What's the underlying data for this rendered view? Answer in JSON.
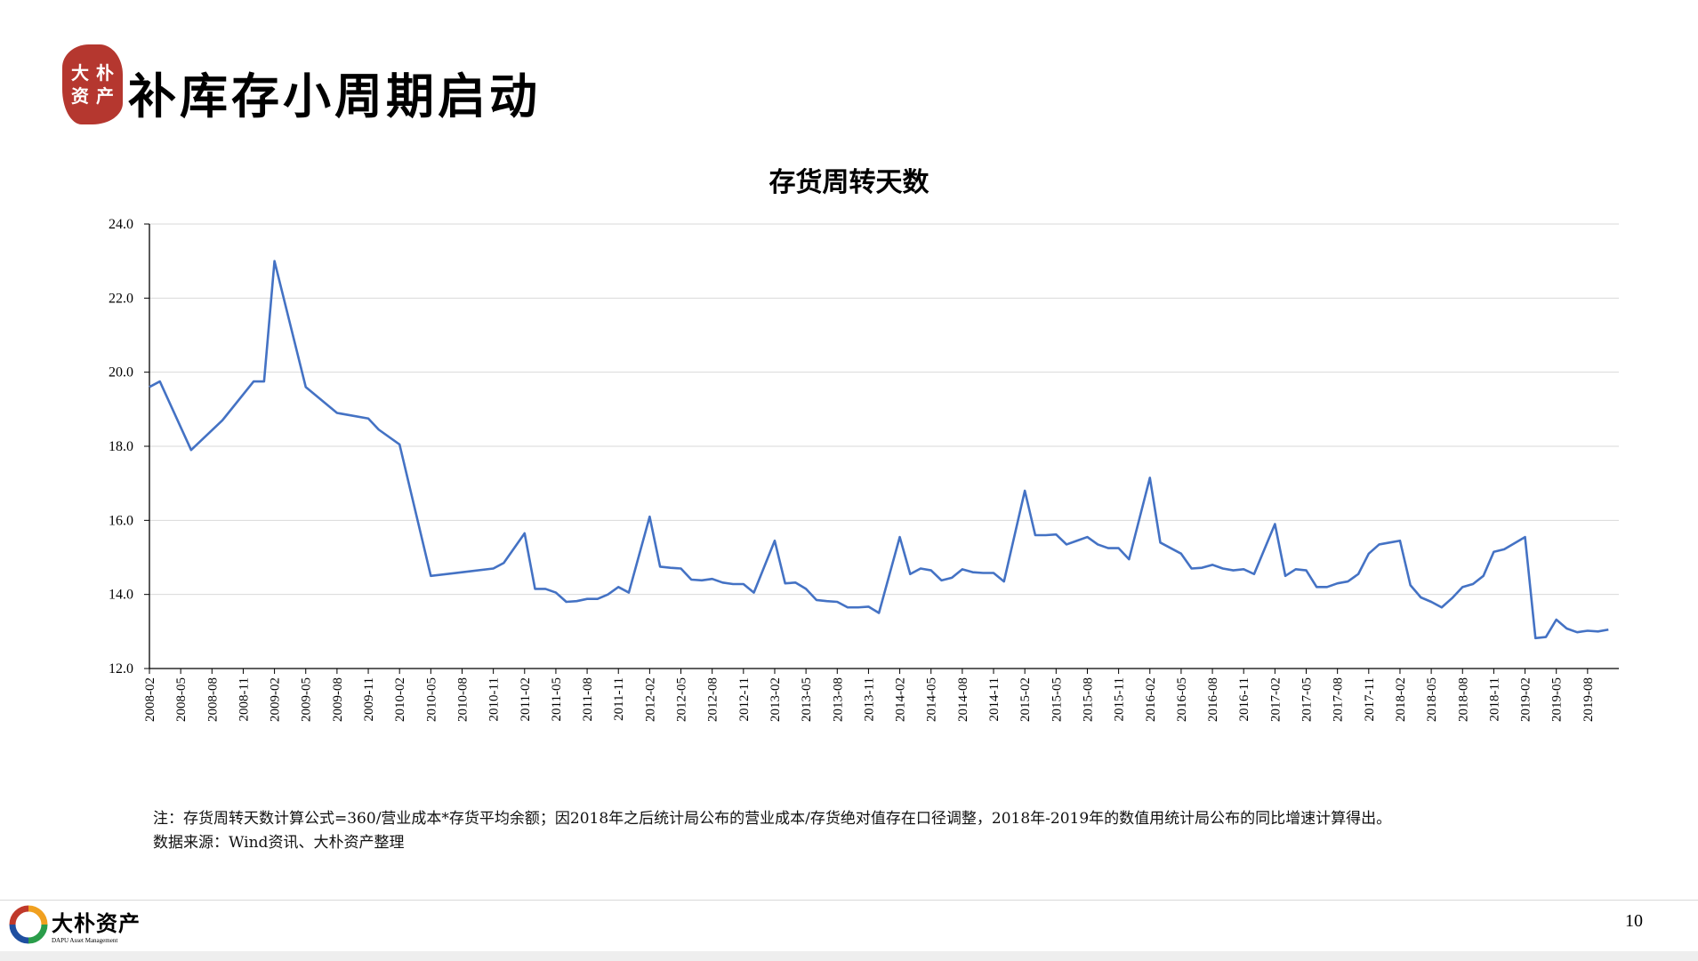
{
  "header": {
    "seal_chars": [
      "大",
      "朴",
      "资",
      "产"
    ],
    "title": "补库存小周期启动"
  },
  "chart_data": {
    "type": "line",
    "title": "存货周转天数",
    "xlabel": "",
    "ylabel": "",
    "ylim": [
      12.0,
      24.0
    ],
    "yticks": [
      "12.0",
      "14.0",
      "16.0",
      "18.0",
      "20.0",
      "22.0",
      "24.0"
    ],
    "grid": true,
    "legend": "none",
    "line_color": "#4472c4",
    "x_tick_labels": [
      "2008-02",
      "2008-05",
      "2008-08",
      "2008-11",
      "2009-02",
      "2009-05",
      "2009-08",
      "2009-11",
      "2010-02",
      "2010-05",
      "2010-08",
      "2010-11",
      "2011-02",
      "2011-05",
      "2011-08",
      "2011-11",
      "2012-02",
      "2012-05",
      "2012-08",
      "2012-11",
      "2013-02",
      "2013-05",
      "2013-08",
      "2013-11",
      "2014-02",
      "2014-05",
      "2014-08",
      "2014-11",
      "2015-02",
      "2015-05",
      "2015-08",
      "2015-11",
      "2016-02",
      "2016-05",
      "2016-08",
      "2016-11",
      "2017-02",
      "2017-05",
      "2017-08",
      "2017-11",
      "2018-02",
      "2018-05",
      "2018-08",
      "2018-11",
      "2019-02",
      "2019-05",
      "2019-08"
    ],
    "x_start": "2008-02",
    "series": [
      {
        "values": [
          19.6,
          19.75,
          null,
          null,
          17.9,
          null,
          null,
          18.7,
          null,
          null,
          19.75,
          19.75,
          23.0,
          null,
          null,
          19.6,
          null,
          null,
          18.9,
          null,
          null,
          18.75,
          18.45,
          null,
          18.05,
          null,
          null,
          14.5,
          null,
          null,
          14.6,
          null,
          null,
          14.7,
          14.85,
          null,
          15.65,
          14.15,
          14.15,
          14.05,
          13.8,
          13.82,
          13.88,
          13.88,
          14.0,
          14.2,
          14.05,
          null,
          16.1,
          14.75,
          14.72,
          14.7,
          14.4,
          14.38,
          14.42,
          14.32,
          14.28,
          14.28,
          14.05,
          null,
          15.45,
          14.3,
          14.32,
          14.15,
          13.85,
          13.82,
          13.8,
          13.65,
          13.65,
          13.67,
          13.5,
          null,
          15.55,
          14.55,
          14.7,
          14.65,
          14.38,
          14.45,
          14.68,
          14.6,
          14.58,
          14.58,
          14.35,
          null,
          16.8,
          15.6,
          15.6,
          15.62,
          15.35,
          15.45,
          15.55,
          15.35,
          15.25,
          15.25,
          14.95,
          null,
          17.15,
          15.4,
          15.25,
          15.1,
          14.7,
          14.72,
          14.8,
          14.7,
          14.65,
          14.68,
          14.55,
          null,
          15.9,
          14.5,
          14.68,
          14.65,
          14.2,
          14.2,
          14.3,
          14.35,
          14.55,
          15.1,
          15.35,
          15.4,
          15.45,
          14.25,
          13.92,
          13.8,
          13.65,
          13.9,
          14.2,
          14.28,
          14.5,
          15.15,
          15.22,
          null,
          15.55,
          12.82,
          12.85,
          13.32,
          13.08,
          12.98,
          13.02,
          13.0,
          13.05
        ]
      }
    ]
  },
  "notes": {
    "line1": "注：存货周转天数计算公式=360/营业成本*存货平均余额；因2018年之后统计局公布的营业成本/存货绝对值存在口径调整，2018年-2019年的数值用统计局公布的同比增速计算得出。",
    "line2": "数据来源：Wind资讯、大朴资产整理"
  },
  "footer": {
    "logo_cn": "大朴资产",
    "logo_en": "DAPU Asset Management",
    "page_number": "10"
  }
}
